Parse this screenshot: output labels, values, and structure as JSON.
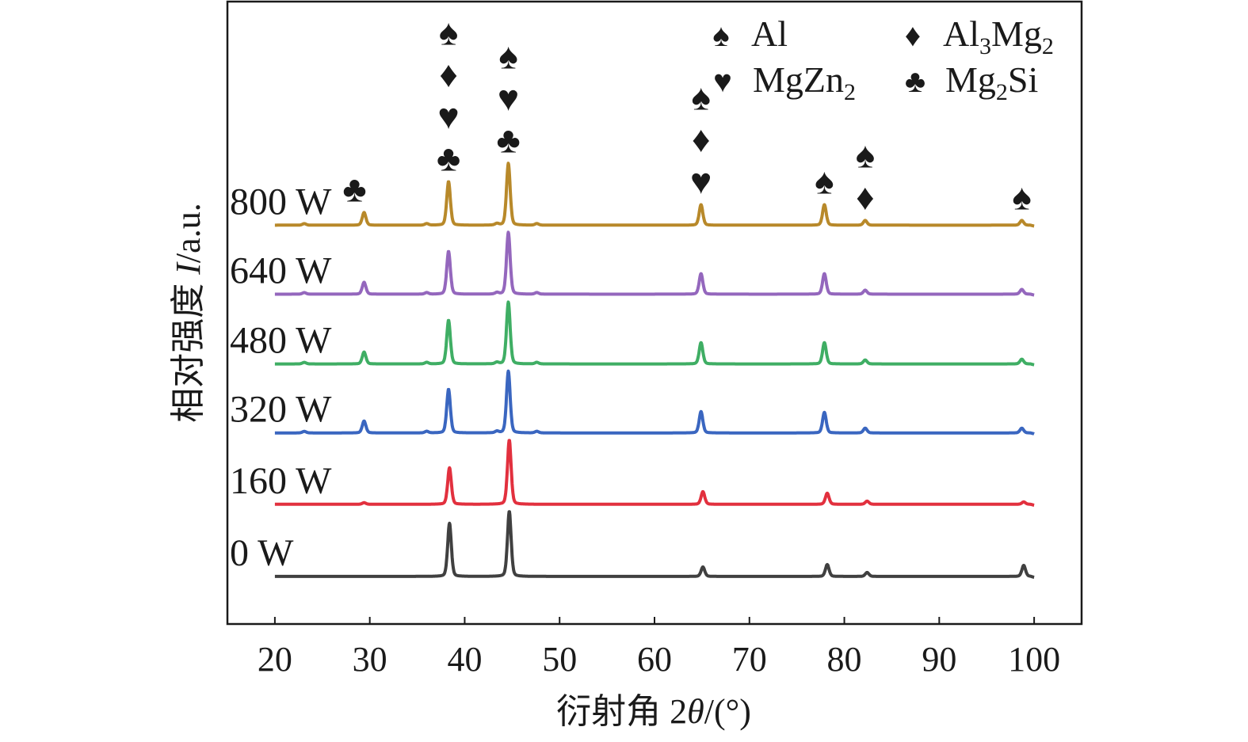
{
  "chart_data": {
    "type": "line",
    "title": "",
    "xlabel": "衍射角 2θ/(°)",
    "xlabel_parts": {
      "prefix": "衍射角 2",
      "theta": "θ",
      "suffix": "/(°)"
    },
    "ylabel_parts": {
      "prefix": "相对强度 ",
      "italic": "I",
      "suffix": "/a.u."
    },
    "xlim": [
      15,
      105
    ],
    "ylim": [
      -60,
      725
    ],
    "xticks": [
      20,
      30,
      40,
      50,
      60,
      70,
      80,
      90,
      100
    ],
    "yticks": [],
    "grid": false,
    "stacked_offset_plot": true,
    "series": [
      {
        "name": "0 W",
        "color": "#404040",
        "offset": 0,
        "peaks": [
          [
            38.4,
            67
          ],
          [
            44.7,
            82
          ],
          [
            65.1,
            12
          ],
          [
            78.2,
            15
          ],
          [
            82.4,
            5
          ],
          [
            98.9,
            14
          ]
        ]
      },
      {
        "name": "160 W",
        "color": "#e2303e",
        "offset": 91,
        "peaks": [
          [
            29.4,
            2
          ],
          [
            38.4,
            46
          ],
          [
            44.7,
            81
          ],
          [
            65.1,
            16
          ],
          [
            78.2,
            14
          ],
          [
            82.4,
            4
          ],
          [
            98.9,
            3
          ]
        ]
      },
      {
        "name": "320 W",
        "color": "#3a66c0",
        "offset": 181,
        "peaks": [
          [
            23.1,
            2
          ],
          [
            29.4,
            15
          ],
          [
            36.0,
            2
          ],
          [
            38.3,
            55
          ],
          [
            43.4,
            2
          ],
          [
            44.6,
            78
          ],
          [
            47.6,
            2
          ],
          [
            64.9,
            27
          ],
          [
            77.9,
            26
          ],
          [
            82.2,
            6
          ],
          [
            98.7,
            6
          ]
        ]
      },
      {
        "name": "480 W",
        "color": "#3fae64",
        "offset": 268,
        "peaks": [
          [
            23.1,
            2
          ],
          [
            29.4,
            15
          ],
          [
            36.0,
            2
          ],
          [
            38.3,
            55
          ],
          [
            43.4,
            2
          ],
          [
            44.6,
            78
          ],
          [
            47.6,
            2
          ],
          [
            64.9,
            27
          ],
          [
            77.9,
            27
          ],
          [
            82.2,
            5
          ],
          [
            98.7,
            6
          ]
        ]
      },
      {
        "name": "640 W",
        "color": "#9467bd",
        "offset": 356,
        "peaks": [
          [
            23.1,
            2
          ],
          [
            29.4,
            15
          ],
          [
            36.0,
            2
          ],
          [
            38.3,
            54
          ],
          [
            43.4,
            2
          ],
          [
            44.6,
            78
          ],
          [
            47.6,
            2
          ],
          [
            64.9,
            26
          ],
          [
            77.9,
            26
          ],
          [
            82.2,
            5
          ],
          [
            98.7,
            6
          ]
        ]
      },
      {
        "name": "800 W",
        "color": "#b8892a",
        "offset": 443,
        "peaks": [
          [
            23.1,
            2
          ],
          [
            29.4,
            16
          ],
          [
            36.0,
            2
          ],
          [
            38.3,
            55
          ],
          [
            43.4,
            2
          ],
          [
            44.6,
            78
          ],
          [
            47.6,
            2
          ],
          [
            64.9,
            26
          ],
          [
            77.9,
            26
          ],
          [
            82.2,
            6
          ],
          [
            98.7,
            6
          ]
        ]
      }
    ],
    "legend": {
      "placement": "top-right",
      "entries": [
        {
          "symbol": "♠",
          "label": "Al",
          "sub": ""
        },
        {
          "symbol": "♦",
          "label": "Al",
          "sub": "3",
          "label2": "Mg",
          "sub2": "2"
        },
        {
          "symbol": "♥",
          "label": "MgZn",
          "sub": "2"
        },
        {
          "symbol": "♣",
          "label": "Mg",
          "sub": "2",
          "label2": "Si"
        }
      ]
    },
    "annotations": [
      {
        "x": 29.4,
        "symbols": [
          "♣"
        ]
      },
      {
        "x": 38.3,
        "symbols": [
          "♠",
          "♦",
          "♥",
          "♣"
        ]
      },
      {
        "x": 44.6,
        "symbols": [
          "♠",
          "♥",
          "♣"
        ]
      },
      {
        "x": 64.9,
        "symbols": [
          "♠",
          "♦",
          "♥"
        ]
      },
      {
        "x": 77.9,
        "symbols": [
          "♠"
        ]
      },
      {
        "x": 82.2,
        "symbols": [
          "♠",
          "♦"
        ]
      },
      {
        "x": 98.7,
        "symbols": [
          "♠"
        ]
      }
    ]
  }
}
